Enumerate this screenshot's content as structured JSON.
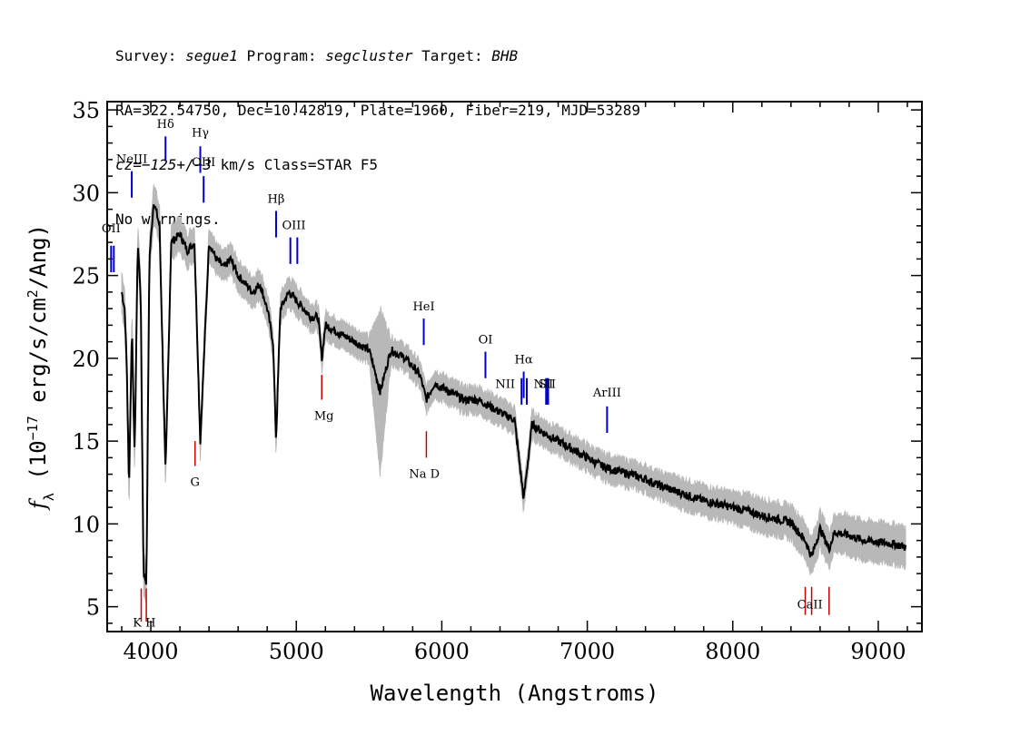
{
  "header": {
    "line1": {
      "survey_label": "Survey: ",
      "survey": "segue1",
      "program_label": " Program: ",
      "program": "segcluster",
      "target_label": " Target: ",
      "target": "BHB"
    },
    "line2": "RA=322.54750, Dec=10.42819, Plate=1960, Fiber=219, MJD=53289",
    "line3": {
      "redshift": "cz=−125+/−3",
      "rest": " km/s Class=STAR F5"
    },
    "line4": "No warnings."
  },
  "colors": {
    "spectrum": "#000000",
    "error_band": "#b8b8b8",
    "emission_marker": "#0000cc",
    "absorption_marker": "#cc0000",
    "frame": "#000000"
  },
  "chart_data": {
    "type": "line",
    "title": "",
    "xlabel": "Wavelength (Angstroms)",
    "ylabel_parts": {
      "f": "f",
      "sub": "λ",
      "pre": " (10",
      "sup": "−17",
      "mid": " erg/s/cm",
      "sup2": "2",
      "post": "/Ang)"
    },
    "xlim": [
      3700,
      9300
    ],
    "ylim": [
      3.5,
      35.5
    ],
    "x_ticks": [
      4000,
      5000,
      6000,
      7000,
      8000,
      9000
    ],
    "y_ticks": [
      5,
      10,
      15,
      20,
      25,
      30,
      35
    ],
    "grid": false,
    "series": [
      {
        "x": [
          3800,
          3820,
          3835,
          3850,
          3870,
          3889,
          3910,
          3930,
          3950,
          3970,
          3990,
          4020,
          4060,
          4101,
          4140,
          4200,
          4250,
          4300,
          4340,
          4400,
          4450,
          4500,
          4550,
          4600,
          4650,
          4700,
          4750,
          4800,
          4840,
          4861,
          4890,
          4950,
          5000,
          5050,
          5100,
          5150,
          5175,
          5200,
          5300,
          5400,
          5500,
          5577,
          5650,
          5750,
          5850,
          5893,
          5950,
          6050,
          6150,
          6250,
          6350,
          6450,
          6500,
          6563,
          6620,
          6700,
          6800,
          6900,
          7000,
          7100,
          7200,
          7300,
          7400,
          7500,
          7600,
          7700,
          7800,
          7900,
          8000,
          8100,
          8200,
          8300,
          8400,
          8498,
          8542,
          8600,
          8662,
          8700,
          8800,
          8900,
          9000,
          9100,
          9200
        ],
        "y": [
          24.0,
          23.0,
          19.5,
          12.0,
          22.0,
          14.0,
          27.0,
          24.0,
          7.0,
          6.5,
          26.0,
          29.5,
          28.0,
          13.0,
          27.0,
          27.5,
          26.5,
          27.0,
          15.0,
          27.0,
          26.0,
          25.5,
          26.0,
          25.0,
          24.5,
          24.0,
          24.5,
          23.0,
          21.0,
          15.0,
          23.0,
          24.0,
          23.5,
          23.0,
          22.5,
          22.5,
          20.0,
          22.0,
          21.5,
          21.0,
          20.5,
          18.0,
          20.5,
          20.0,
          19.0,
          17.5,
          18.5,
          18.0,
          17.5,
          17.5,
          17.0,
          16.5,
          16.3,
          11.5,
          16.0,
          15.5,
          15.0,
          14.5,
          14.0,
          13.5,
          13.2,
          13.0,
          12.7,
          12.3,
          12.0,
          11.7,
          11.4,
          11.2,
          11.0,
          10.8,
          10.5,
          10.3,
          10.1,
          9.0,
          8.0,
          9.7,
          8.5,
          9.5,
          9.3,
          9.0,
          8.9,
          8.8,
          8.6
        ],
        "err": [
          1.2,
          1.2,
          1.2,
          1.3,
          1.2,
          1.2,
          1.2,
          1.2,
          1.2,
          1.2,
          1.2,
          1.2,
          1.1,
          1.1,
          1.0,
          1.0,
          1.0,
          1.0,
          1.0,
          1.0,
          0.9,
          0.9,
          0.9,
          0.9,
          0.9,
          0.9,
          0.9,
          0.9,
          0.9,
          0.9,
          0.9,
          0.9,
          0.9,
          0.8,
          0.8,
          0.8,
          0.8,
          0.8,
          0.8,
          0.8,
          0.8,
          5.0,
          0.8,
          0.8,
          0.8,
          0.8,
          0.8,
          0.8,
          0.8,
          0.8,
          0.8,
          0.8,
          0.8,
          0.8,
          0.8,
          0.8,
          0.8,
          0.8,
          0.8,
          0.8,
          0.8,
          0.8,
          0.8,
          0.8,
          0.9,
          0.9,
          0.9,
          0.9,
          0.9,
          1.0,
          1.0,
          1.0,
          1.0,
          1.1,
          1.1,
          1.1,
          1.1,
          1.1,
          1.2,
          1.2,
          1.2,
          1.2,
          1.2
        ]
      }
    ],
    "emission_lines": [
      {
        "label": "OII",
        "wave": 3727,
        "y0": 25.2,
        "y1": 26.8,
        "label_y": 27.6,
        "double": true
      },
      {
        "label": "NeIII",
        "wave": 3869,
        "y0": 29.7,
        "y1": 31.3,
        "label_y": 31.8
      },
      {
        "label": "Hδ",
        "wave": 4101,
        "y0": 31.9,
        "y1": 33.4,
        "label_y": 33.9
      },
      {
        "label": "Hγ",
        "wave": 4340,
        "y0": 32.8,
        "y1": 31.2,
        "label_y": 33.4,
        "label_above": true
      },
      {
        "label": "OIII",
        "wave": 4363,
        "y0": 29.4,
        "y1": 31.0,
        "label_y": 31.6
      },
      {
        "label": "Hβ",
        "wave": 4861,
        "y0": 27.3,
        "y1": 28.9,
        "label_y": 29.4
      },
      {
        "label": "OIII",
        "wave": 4959,
        "y0": 25.7,
        "y1": 27.3,
        "label_y": 27.8,
        "pair": 5007
      },
      {
        "label": "HeI",
        "wave": 5876,
        "y0": 20.8,
        "y1": 22.4,
        "label_y": 22.9
      },
      {
        "label": "OI",
        "wave": 6300,
        "y0": 18.8,
        "y1": 20.4,
        "label_y": 20.9
      },
      {
        "label": "NII",
        "wave": 6548,
        "y0": 17.2,
        "y1": 18.8,
        "label_y": 18.2,
        "label_left": true
      },
      {
        "label": "Hα",
        "wave": 6563,
        "y0": 17.6,
        "y1": 19.2,
        "label_y": 19.7
      },
      {
        "label": "NII",
        "wave": 6584,
        "y0": 17.2,
        "y1": 18.8,
        "label_y": 0,
        "no_label": true
      },
      {
        "label": "SII",
        "wave": 6717,
        "y0": 17.2,
        "y1": 18.8,
        "label_y": 18.2,
        "pair": 6731
      },
      {
        "label": "NII",
        "wave": 6724,
        "y0": 17.2,
        "y1": 18.8,
        "label_y": 18.2,
        "overlap_only": true
      },
      {
        "label": "ArIII",
        "wave": 7136,
        "y0": 15.5,
        "y1": 17.1,
        "label_y": 17.7
      }
    ],
    "absorption_lines": [
      {
        "label": "K",
        "wave": 3934,
        "y0": 4.1,
        "y1": 6.1
      },
      {
        "label": "H",
        "wave": 3969,
        "y0": 4.1,
        "y1": 6.1
      },
      {
        "label": "G",
        "wave": 4304,
        "y0": 13.5,
        "y1": 15.0
      },
      {
        "label": "Mg",
        "wave": 5175,
        "y0": 17.5,
        "y1": 19.0
      },
      {
        "label": "Na D",
        "wave": 5894,
        "y0": 14.0,
        "y1": 15.6
      },
      {
        "label": "CaII",
        "wave": 8498,
        "y0": 4.5,
        "y1": 6.2,
        "group": [
          8498,
          8542,
          8662
        ]
      }
    ],
    "absorption_labels": [
      {
        "text": "K H",
        "wave": 3955,
        "y": 3.8
      },
      {
        "text": "G",
        "wave": 4304,
        "y": 12.3
      },
      {
        "text": "Mg",
        "wave": 5190,
        "y": 16.3
      },
      {
        "text": "Na  D",
        "wave": 5880,
        "y": 12.8
      },
      {
        "text": "CaII",
        "wave": 8530,
        "y": 4.9
      }
    ]
  }
}
